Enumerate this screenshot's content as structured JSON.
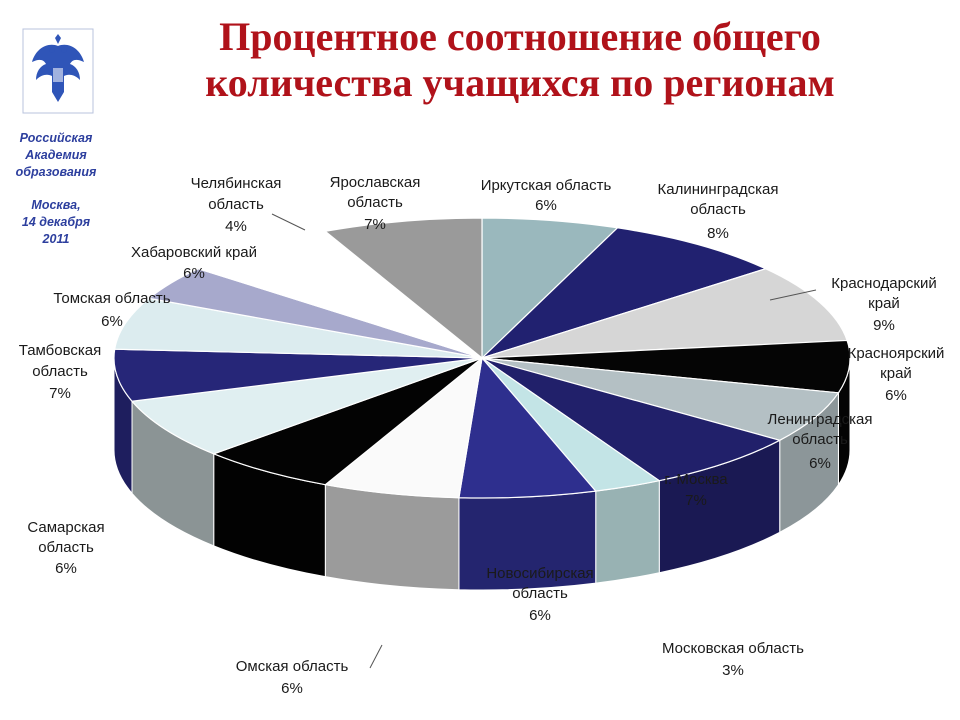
{
  "header": {
    "title_line1": "Процентное соотношение общего",
    "title_line2": "количества учащихся по регионам"
  },
  "sidebar": {
    "org_line1": "Российская",
    "org_line2": "Академия",
    "org_line3": "образования",
    "place_line1": "Москва,",
    "place_line2": "14 декабря",
    "place_line3": "2011"
  },
  "chart_data": {
    "type": "pie",
    "title": "Процентное соотношение общего количества учащихся по регионам",
    "style": "3d",
    "slices": [
      {
        "label": "Иркутская область",
        "value": 6,
        "value_label": "6%",
        "color": "#9ab8bd"
      },
      {
        "label": "Калининградская область",
        "value": 8,
        "value_label": "8%",
        "color": "#212170"
      },
      {
        "label": "Краснодарский край",
        "value": 9,
        "value_label": "9%",
        "color": "#d6d6d6"
      },
      {
        "label": "Красноярский край",
        "value": 6,
        "value_label": "6%",
        "color": "#050505"
      },
      {
        "label": "Ленинградская область",
        "value": 6,
        "value_label": "6%",
        "color": "#b4c0c4"
      },
      {
        "label": "г. Москва",
        "value": 7,
        "value_label": "7%",
        "color": "#21206a"
      },
      {
        "label": "Московская область",
        "value": 3,
        "value_label": "3%",
        "color": "#c3e4e6"
      },
      {
        "label": "Новосибирская область",
        "value": 6,
        "value_label": "6%",
        "color": "#2e2f8e"
      },
      {
        "label": "Омская область",
        "value": 6,
        "value_label": "6%",
        "color": "#fafafa"
      },
      {
        "label": "Самарская область",
        "value": 6,
        "value_label": "6%",
        "color": "#030303"
      },
      {
        "label": "Тамбовская область",
        "value": 7,
        "value_label": "7%",
        "color": "#e0eff1"
      },
      {
        "label": "Томская область",
        "value": 6,
        "value_label": "6%",
        "color": "#262678"
      },
      {
        "label": "Хабаровский край",
        "value": 6,
        "value_label": "6%",
        "color": "#dcecef"
      },
      {
        "label": "Челябинская область",
        "value": 4,
        "value_label": "4%",
        "color": "#a7a9cc"
      },
      {
        "label": "Ярославская область",
        "value": 7,
        "value_label": "7%",
        "color": "#ffffff"
      },
      {
        "label": "",
        "value": 7,
        "value_label": "",
        "color": "#9a9a9a"
      }
    ]
  }
}
